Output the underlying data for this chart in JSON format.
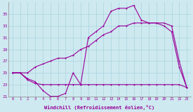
{
  "xlabel": "Windchill (Refroidissement éolien,°C)",
  "background_color": "#cee9f0",
  "grid_color": "#aad4dd",
  "line_color": "#990099",
  "x_hours": [
    0,
    1,
    2,
    3,
    4,
    5,
    6,
    7,
    8,
    9,
    10,
    11,
    12,
    13,
    14,
    15,
    16,
    17,
    18,
    19,
    20,
    21,
    22,
    23
  ],
  "series1": [
    25,
    25,
    24,
    23.5,
    22,
    21,
    21,
    21.5,
    25,
    23,
    31,
    32,
    33,
    35.5,
    36,
    36,
    36.5,
    34,
    33.5,
    33.5,
    33,
    32,
    26,
    22.5
  ],
  "series2": [
    25,
    25,
    23.8,
    23.2,
    23,
    23,
    23,
    23,
    23,
    23,
    23,
    23,
    23,
    23,
    23,
    23,
    23,
    23,
    23,
    23,
    23,
    23,
    23,
    22.5
  ],
  "series3": [
    25,
    25,
    25,
    26,
    26.5,
    27,
    27.5,
    27.5,
    28,
    29,
    29.5,
    30.5,
    31.5,
    32,
    33,
    33,
    33.5,
    33.5,
    33.5,
    33.5,
    33.5,
    33,
    27,
    22.5
  ],
  "ylim": [
    21,
    37
  ],
  "xlim": [
    -0.5,
    23.5
  ],
  "yticks": [
    21,
    23,
    25,
    27,
    29,
    31,
    33,
    35
  ],
  "xticks": [
    0,
    1,
    2,
    3,
    4,
    5,
    6,
    7,
    8,
    9,
    10,
    11,
    12,
    13,
    14,
    15,
    16,
    17,
    18,
    19,
    20,
    21,
    22,
    23
  ]
}
